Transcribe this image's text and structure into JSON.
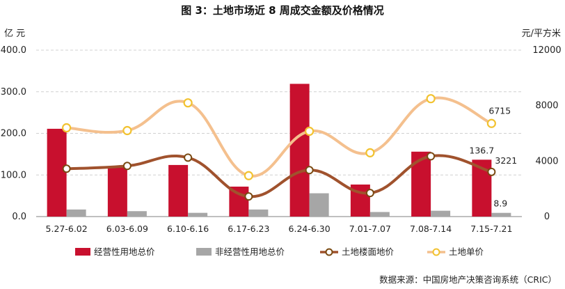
{
  "chart_data": {
    "type": "bar",
    "title": "图 3：土地市场近 8 周成交金额及价格情况",
    "ylabel_left": "亿  元",
    "ylabel_right": "元/平方米",
    "ylim_left": [
      0,
      400
    ],
    "ylim_right": [
      0,
      12000
    ],
    "yticks_left": [
      "0.0",
      "100.0",
      "200.0",
      "300.0",
      "400.0"
    ],
    "yticks_right": [
      "0",
      "4000",
      "8000",
      "12000"
    ],
    "grid": true,
    "legend_position": "bottom",
    "categories": [
      "5.27-6.02",
      "6.03-6.09",
      "6.10-6.16",
      "6.17-6.23",
      "6.24-6.30",
      "7.01-7.07",
      "7.08-7.14",
      "7.15-7.21"
    ],
    "series": [
      {
        "name": "经营性用地总价",
        "type": "bar",
        "axis": "left",
        "color": "#c8102e",
        "values": [
          211,
          119,
          124,
          72,
          319,
          77,
          156,
          136.7
        ]
      },
      {
        "name": "非经营性用地总价",
        "type": "bar",
        "axis": "left",
        "color": "#a6a6a6",
        "values": [
          17,
          13,
          9,
          17,
          56,
          11,
          14,
          8.9
        ]
      },
      {
        "name": "土地楼面地价",
        "type": "line",
        "axis": "right",
        "color": "#a0522d",
        "values": [
          3450,
          3650,
          4250,
          1450,
          3350,
          1700,
          4350,
          3221
        ]
      },
      {
        "name": "土地单价",
        "type": "line",
        "axis": "right",
        "color": "#f4c08e",
        "values": [
          6400,
          6200,
          8200,
          2950,
          6150,
          4600,
          8500,
          6715
        ]
      }
    ],
    "data_labels": [
      {
        "text": "136.7",
        "series": 0,
        "index": 7
      },
      {
        "text": "8.9",
        "series": 1,
        "index": 7
      },
      {
        "text": "3221",
        "series": 2,
        "index": 7
      },
      {
        "text": "6715",
        "series": 3,
        "index": 7
      }
    ]
  },
  "source": "数据来源：中国房地产决策咨询系统（CRIC）"
}
